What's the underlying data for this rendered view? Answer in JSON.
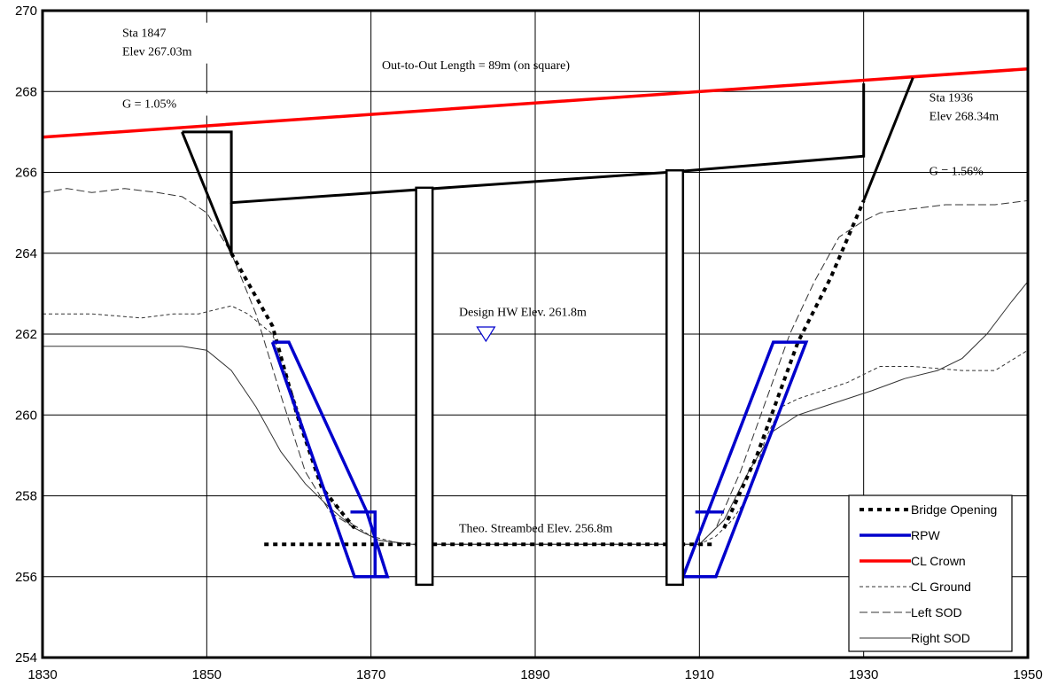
{
  "chart_data": {
    "type": "line",
    "title": "",
    "xlabel": "",
    "ylabel": "",
    "xlim": [
      1830,
      1950
    ],
    "ylim": [
      254,
      270
    ],
    "x_ticks": [
      1830,
      1850,
      1870,
      1890,
      1910,
      1930,
      1950
    ],
    "y_ticks": [
      254,
      256,
      258,
      260,
      262,
      264,
      266,
      268,
      270
    ],
    "grid": true,
    "legend_position": "bottom-right",
    "series": [
      {
        "name": "CL Crown",
        "color": "#ff0000",
        "style": "solid",
        "x": [
          1830,
          1950
        ],
        "y": [
          266.87,
          268.56
        ]
      },
      {
        "name": "Bridge Opening",
        "color": "#000000",
        "style": "dotted",
        "segments": [
          {
            "x": [
              1853,
              1858,
              1861,
              1864,
              1868
            ],
            "y": [
              264.0,
              262.2,
              260.0,
              258.2,
              257.2
            ]
          },
          {
            "x": [
              1857,
              1912
            ],
            "y": [
              256.8,
              256.8
            ]
          },
          {
            "x": [
              1913,
              1917,
              1922,
              1926,
              1930
            ],
            "y": [
              257.2,
              259.0,
              261.8,
              263.4,
              265.3
            ]
          }
        ]
      },
      {
        "name": "RPW",
        "color": "#0000cc",
        "style": "solid",
        "segments": [
          {
            "x": [
              1858,
              1860,
              1869.5,
              1872,
              1868,
              1858
            ],
            "y": [
              261.8,
              261.8,
              257.6,
              256.0,
              256.0,
              261.8
            ]
          },
          {
            "x": [
              1867.5,
              1870.5,
              1870.5
            ],
            "y": [
              257.6,
              257.6,
              256.0
            ]
          },
          {
            "x": [
              1921,
              1923,
              1912,
              1908,
              1919,
              1921
            ],
            "y": [
              261.8,
              261.8,
              256.0,
              256.0,
              261.8,
              261.8
            ]
          },
          {
            "x": [
              1909.5,
              1913,
              1909.5
            ],
            "y": [
              257.6,
              257.6,
              257.6
            ]
          }
        ]
      },
      {
        "name": "CL Ground",
        "color": "#333333",
        "style": "dashed-fine",
        "x": [
          1830,
          1836,
          1842,
          1846,
          1849,
          1851,
          1853,
          1855,
          1858,
          1861,
          1864,
          1867,
          1870,
          1874,
          1880,
          1890,
          1900,
          1910,
          1912,
          1914,
          1916,
          1918,
          1920,
          1922,
          1925,
          1928,
          1930,
          1932,
          1936,
          1942,
          1946,
          1950
        ],
        "y": [
          262.5,
          262.5,
          262.4,
          262.5,
          262.5,
          262.6,
          262.7,
          262.5,
          262.0,
          260.2,
          258.2,
          257.4,
          257.0,
          256.8,
          256.8,
          256.8,
          256.8,
          256.8,
          257.0,
          257.4,
          258.0,
          259.4,
          260.2,
          260.4,
          260.6,
          260.8,
          261.0,
          261.2,
          261.2,
          261.1,
          261.1,
          261.6
        ]
      },
      {
        "name": "Left SOD",
        "color": "#333333",
        "style": "dashed",
        "x": [
          1830,
          1833,
          1836,
          1840,
          1844,
          1847,
          1850,
          1853,
          1856,
          1859,
          1862,
          1865,
          1868,
          1871,
          1875,
          1880,
          1890,
          1900,
          1910,
          1912,
          1915,
          1918,
          1921,
          1924,
          1927,
          1930,
          1932,
          1936,
          1940,
          1946,
          1950
        ],
        "y": [
          265.5,
          265.6,
          265.5,
          265.6,
          265.5,
          265.4,
          265.0,
          264.0,
          262.5,
          260.5,
          258.6,
          257.6,
          257.2,
          256.9,
          256.8,
          256.8,
          256.8,
          256.8,
          256.8,
          257.2,
          258.6,
          260.3,
          262.0,
          263.3,
          264.4,
          264.8,
          265.0,
          265.1,
          265.2,
          265.2,
          265.3
        ]
      },
      {
        "name": "Right SOD",
        "color": "#333333",
        "style": "solid-thin",
        "x": [
          1830,
          1836,
          1842,
          1847,
          1850,
          1853,
          1856,
          1859,
          1862,
          1865,
          1868,
          1871,
          1875,
          1880,
          1890,
          1900,
          1910,
          1913,
          1916,
          1919,
          1922,
          1925,
          1928,
          1931,
          1935,
          1939,
          1942,
          1945,
          1948,
          1950
        ],
        "y": [
          261.7,
          261.7,
          261.7,
          261.7,
          261.6,
          261.1,
          260.2,
          259.1,
          258.3,
          257.7,
          257.2,
          256.9,
          256.8,
          256.8,
          256.8,
          256.8,
          256.8,
          257.4,
          258.6,
          259.6,
          260.0,
          260.2,
          260.4,
          260.6,
          260.9,
          261.1,
          261.4,
          262.0,
          262.8,
          263.3
        ]
      }
    ],
    "structure": {
      "deck_outline": {
        "color": "#000000",
        "x": [
          1847,
          1853,
          1853,
          1906,
          1930,
          1930
        ],
        "y": [
          267.0,
          267.0,
          265.25,
          266.0,
          266.4,
          268.2
        ]
      },
      "abutments": [
        {
          "x": [
            1847,
            1853,
            1853
          ],
          "y": [
            267.0,
            264.0,
            265.25
          ]
        },
        {
          "x": [
            1930,
            1936
          ],
          "y": [
            265.3,
            268.34
          ]
        }
      ],
      "piers": [
        {
          "x_left": 1875.5,
          "x_right": 1877.5,
          "y_top": 265.62,
          "y_bottom": 255.8
        },
        {
          "x_left": 1906,
          "x_right": 1908,
          "y_top": 266.05,
          "y_bottom": 255.8
        }
      ],
      "water_marker": {
        "x": 1884,
        "y": 262.0,
        "color": "#0000cc"
      }
    },
    "annotations": [
      {
        "id": "left-sta",
        "lines": [
          "Sta  1847",
          "Elev 267.03m"
        ],
        "x": 1830,
        "y": 269.3
      },
      {
        "id": "left-grade",
        "lines": [
          "G = 1.05%"
        ],
        "x": 1830,
        "y": 267.7
      },
      {
        "id": "length",
        "lines": [
          "Out-to-Out Length = 89m (on square)"
        ],
        "x": 1850,
        "y": 268.5
      },
      {
        "id": "right-sta",
        "lines": [
          "Sta  1936",
          "Elev 268.34m"
        ],
        "x": 1938,
        "y": 267.5
      },
      {
        "id": "right-grade",
        "lines": [
          "G = 1.56%"
        ],
        "x": 1938,
        "y": 265.9
      },
      {
        "id": "design-hw",
        "lines": [
          "Design HW Elev. 261.8m"
        ],
        "x": 1871,
        "y": 262.4
      },
      {
        "id": "streambed",
        "lines": [
          "Theo. Streambed Elev.  256.8m"
        ],
        "x": 1871,
        "y": 257.1
      }
    ],
    "legend_entries": [
      "Bridge Opening",
      "RPW",
      "CL Crown",
      "CL Ground",
      "Left SOD",
      "Right SOD"
    ]
  }
}
